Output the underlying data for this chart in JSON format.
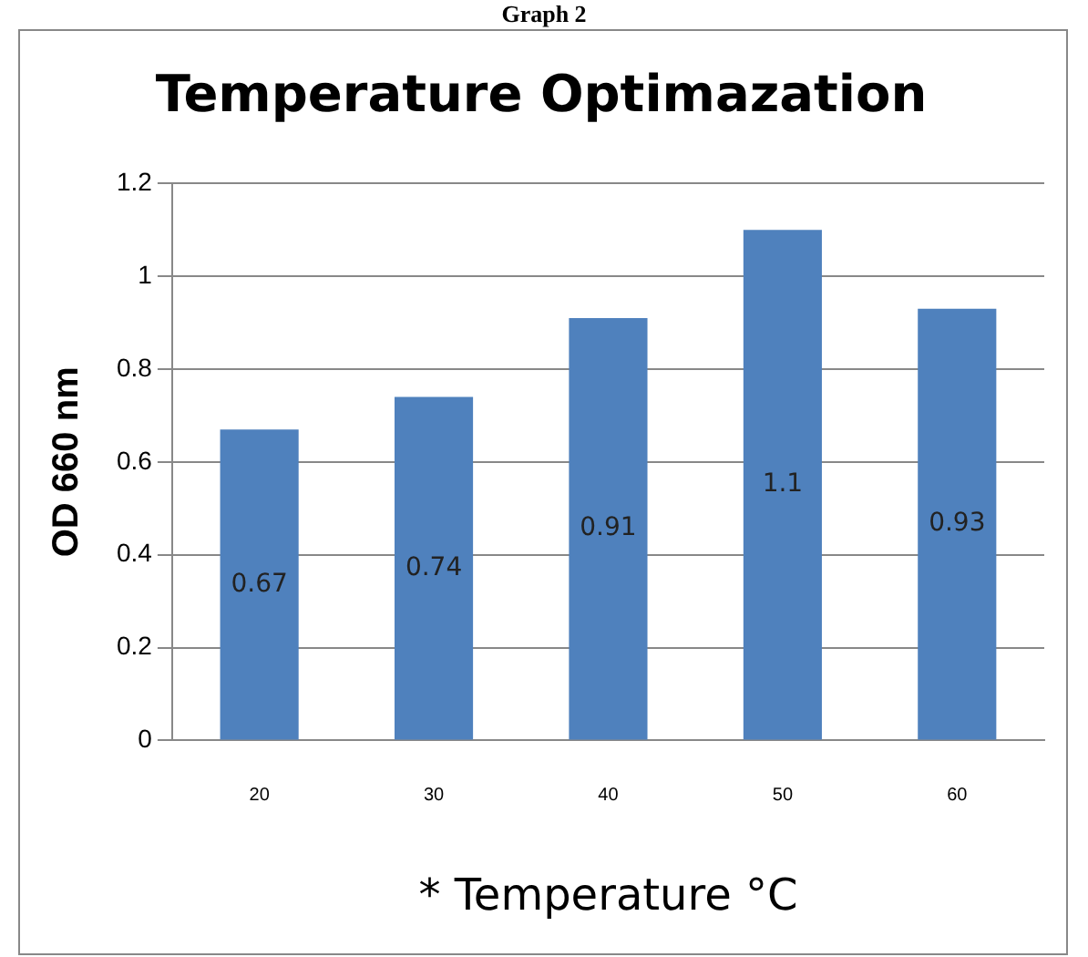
{
  "chart_data": {
    "type": "bar",
    "title": "Temperature Optimazation",
    "xlabel": "* Temperature °C",
    "ylabel": "OD 660 nm",
    "annotations": [
      "Graph 2"
    ],
    "categories": [
      "20",
      "30",
      "40",
      "50",
      "60"
    ],
    "values": [
      0.67,
      0.74,
      0.91,
      1.1,
      0.93
    ],
    "color": "#4f81bd",
    "ylim": [
      0,
      1.2
    ],
    "yticks": [
      0,
      0.2,
      0.4,
      0.6,
      0.8,
      1,
      1.2
    ],
    "grid": "y",
    "data_labels": true
  }
}
